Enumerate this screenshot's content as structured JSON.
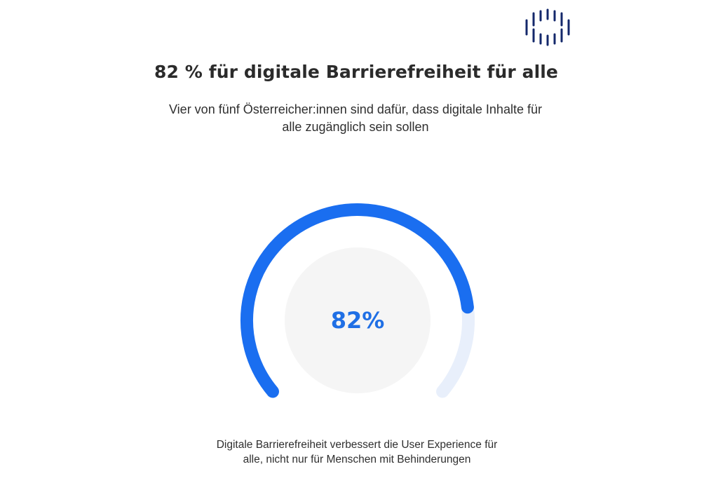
{
  "header": {
    "logo_icon": "brand-bars-logo-icon",
    "logo_color": "#14286b"
  },
  "chart_data": {
    "type": "gauge",
    "title": "82 % für digitale Barrierefreiheit für alle",
    "subtitle": "Vier von fünf Österreicher:innen sind dafür, dass digitale Inhalte für alle zugänglich sein sollen",
    "value": 82,
    "value_label": "82%",
    "range": [
      0,
      100
    ],
    "colors": {
      "fill": "#1a6ef0",
      "track": "#e8effb",
      "center": "#f5f5f5",
      "value_text": "#1f6fe5"
    }
  },
  "footnote": "Digitale Barrierefreiheit verbessert die User Experience für alle, nicht nur für Menschen mit Behinderungen"
}
